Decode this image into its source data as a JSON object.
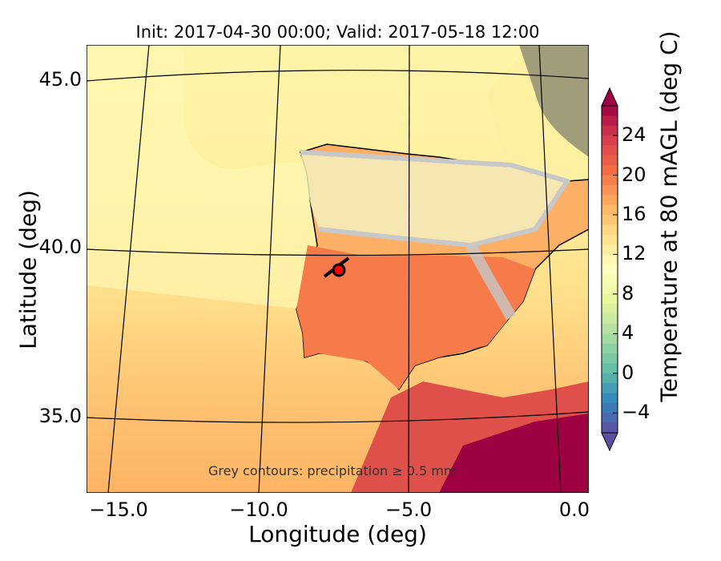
{
  "title": "Init: 2017-04-30 00:00; Valid: 2017-05-18 12:00",
  "xlabel": "Longitude (deg)",
  "ylabel": "Latitude (deg)",
  "annotation": "Grey contours: precipitation ≥ 0.5 mm",
  "x_ticks": [
    {
      "value": -15,
      "label": "−15.0"
    },
    {
      "value": -10,
      "label": "−10.0"
    },
    {
      "value": -5,
      "label": "−5.0"
    },
    {
      "value": 0,
      "label": "0.0"
    }
  ],
  "y_ticks": [
    {
      "value": 45,
      "label": "45.0"
    },
    {
      "value": 40,
      "label": "40.0"
    },
    {
      "value": 35,
      "label": "35.0"
    }
  ],
  "colorbar": {
    "label": "Temperature at 80 mAGL (deg C)",
    "min": -6,
    "max": 27,
    "step": 1,
    "extend": "both",
    "ticks": [
      {
        "value": 24,
        "label": "24"
      },
      {
        "value": 20,
        "label": "20"
      },
      {
        "value": 16,
        "label": "16"
      },
      {
        "value": 12,
        "label": "12"
      },
      {
        "value": 8,
        "label": "8"
      },
      {
        "value": 4,
        "label": "4"
      },
      {
        "value": 0,
        "label": "0"
      },
      {
        "value": -4,
        "label": "−4"
      }
    ]
  },
  "marker": {
    "lon": -7.3,
    "lat": 39.4,
    "color": "#ff0000"
  },
  "colors": {
    "sea_north": "#fdf4a9",
    "sea_mid": "#fee08b",
    "sea_south": "#fdbf6f",
    "land_hot": "#f46d43",
    "africa": "#9e0142",
    "precip": "#c8c8c8"
  }
}
